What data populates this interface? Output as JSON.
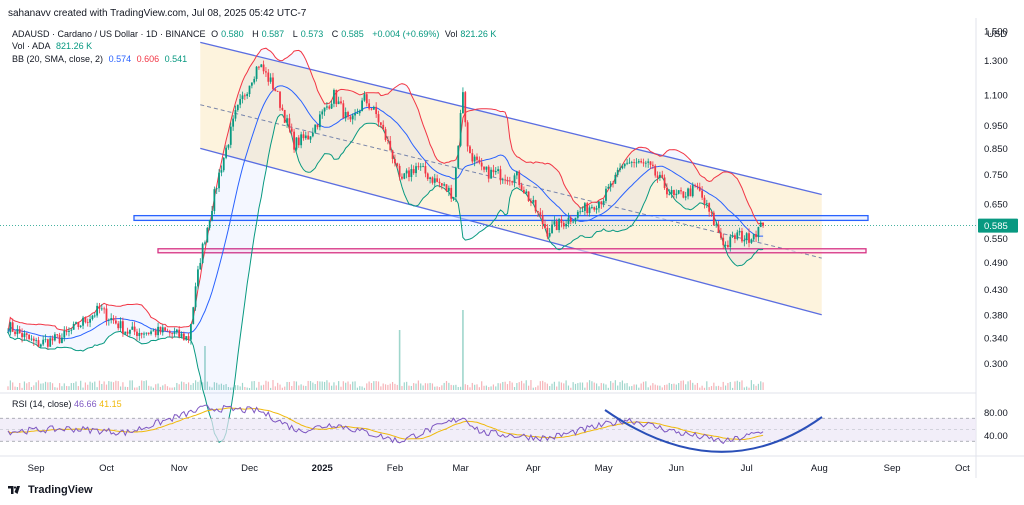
{
  "header": {
    "credit": "sahanavv created with TradingView.com, Jul 08, 2025 05:42 UTC-7",
    "symbol": "ADAUSD · Cardano / US Dollar · 1D · BINANCE",
    "o_label": "O",
    "o_value": "0.580",
    "h_label": "H",
    "h_value": "0.587",
    "l_label": "L",
    "l_value": "0.573",
    "c_label": "C",
    "c_value": "0.585",
    "change": "+0.004 (+0.69%)",
    "vol_label": "Vol",
    "vol_value": "821.26 K",
    "vol_ada_label": "Vol · ADA",
    "vol_ada_value": "821.26 K",
    "bb_label": "BB (20, SMA, close, 2)",
    "bb_basis": "0.574",
    "bb_upper": "0.606",
    "bb_lower": "0.541"
  },
  "rsi": {
    "label": "RSI (14, close)",
    "value": "46.66",
    "ma_value": "41.15"
  },
  "brand": "TradingView",
  "colors": {
    "up": "#089981",
    "down": "#f23645",
    "bb_basis": "#2962ff",
    "bb_upper": "#f23645",
    "bb_lower": "#089981",
    "channel": "#5b6ee1",
    "channel_fill": "#fdf0d5",
    "support": "#2962ff",
    "resistance_zone": "#d63384",
    "rsi_line": "#7e57c2",
    "rsi_ma": "#f0b90b",
    "rsi_band": "#ede7f6",
    "bowl": "#2a4fb8"
  },
  "chart_data": {
    "type": "candlestick",
    "price_scale": "log",
    "currency_label": "USD",
    "y_ticks": [
      "1.500",
      "1.300",
      "1.100",
      "0.950",
      "0.850",
      "0.750",
      "0.650",
      "0.550",
      "0.490",
      "0.430",
      "0.380",
      "0.340",
      "0.300"
    ],
    "last_price": "0.585",
    "x_ticks": [
      "Sep",
      "Oct",
      "Nov",
      "Dec",
      "2025",
      "Feb",
      "Mar",
      "Apr",
      "May",
      "Jun",
      "Jul",
      "Aug",
      "Sep",
      "Oct"
    ],
    "dates": {
      "start": "2024-08-20",
      "end": "2025-07-08"
    },
    "close_anchors": [
      [
        "2024-08-20",
        0.36
      ],
      [
        "2024-09-01",
        0.33
      ],
      [
        "2024-09-12",
        0.34
      ],
      [
        "2024-09-28",
        0.39
      ],
      [
        "2024-10-10",
        0.35
      ],
      [
        "2024-10-25",
        0.35
      ],
      [
        "2024-11-05",
        0.34
      ],
      [
        "2024-11-10",
        0.5
      ],
      [
        "2024-11-18",
        0.75
      ],
      [
        "2024-11-25",
        1.0
      ],
      [
        "2024-12-02",
        1.2
      ],
      [
        "2024-12-05",
        1.28
      ],
      [
        "2024-12-12",
        1.13
      ],
      [
        "2024-12-20",
        0.87
      ],
      [
        "2024-12-26",
        0.9
      ],
      [
        "2025-01-06",
        1.1
      ],
      [
        "2025-01-13",
        0.95
      ],
      [
        "2025-01-19",
        1.08
      ],
      [
        "2025-01-24",
        1.0
      ],
      [
        "2025-02-01",
        0.8
      ],
      [
        "2025-02-03",
        0.72
      ],
      [
        "2025-02-10",
        0.78
      ],
      [
        "2025-02-26",
        0.68
      ],
      [
        "2025-03-02",
        1.13
      ],
      [
        "2025-03-04",
        0.85
      ],
      [
        "2025-03-10",
        0.76
      ],
      [
        "2025-03-25",
        0.74
      ],
      [
        "2025-04-07",
        0.57
      ],
      [
        "2025-04-20",
        0.62
      ],
      [
        "2025-05-01",
        0.67
      ],
      [
        "2025-05-11",
        0.8
      ],
      [
        "2025-05-20",
        0.78
      ],
      [
        "2025-05-31",
        0.67
      ],
      [
        "2025-06-10",
        0.7
      ],
      [
        "2025-06-22",
        0.53
      ],
      [
        "2025-06-27",
        0.56
      ],
      [
        "2025-07-01",
        0.55
      ],
      [
        "2025-07-08",
        0.585
      ]
    ],
    "bollinger": {
      "period": 20,
      "stddev": 2,
      "basis": 0.574,
      "upper": 0.606,
      "lower": 0.541
    },
    "support_zone": [
      0.6,
      0.614
    ],
    "demand_zone": [
      0.513,
      0.523
    ],
    "descending_channel": {
      "upper": [
        [
          "2024-11-10",
          1.42
        ],
        [
          "2025-08-02",
          0.68
        ]
      ],
      "mid": [
        [
          "2024-11-10",
          1.05
        ],
        [
          "2025-08-02",
          0.5
        ]
      ],
      "lower": [
        [
          "2024-11-10",
          0.85
        ],
        [
          "2025-08-02",
          0.38
        ]
      ]
    },
    "rsi": {
      "ticks": [
        "80.00",
        "40.00"
      ],
      "overbought": 70,
      "oversold": 30,
      "anchors": [
        [
          "2024-08-20",
          47
        ],
        [
          "2024-09-15",
          52
        ],
        [
          "2024-10-10",
          45
        ],
        [
          "2024-11-12",
          88
        ],
        [
          "2024-12-05",
          83
        ],
        [
          "2024-12-22",
          48
        ],
        [
          "2025-01-06",
          60
        ],
        [
          "2025-02-03",
          30
        ],
        [
          "2025-03-02",
          72
        ],
        [
          "2025-03-10",
          45
        ],
        [
          "2025-04-07",
          35
        ],
        [
          "2025-05-11",
          68
        ],
        [
          "2025-06-02",
          45
        ],
        [
          "2025-06-22",
          29
        ],
        [
          "2025-07-08",
          46.66
        ]
      ]
    },
    "volume_spikes": [
      [
        "2025-02-03",
        0.75
      ],
      [
        "2025-03-02",
        1.0
      ],
      [
        "2024-11-12",
        0.55
      ]
    ]
  }
}
